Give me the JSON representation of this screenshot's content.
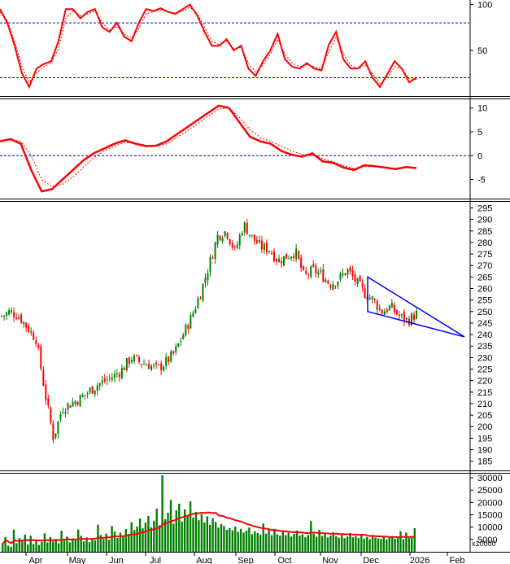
{
  "colors": {
    "background": "#ffffff",
    "up_candle": "#008000",
    "down_candle": "#ff0000",
    "indicator_line": "#ff0000",
    "indicator_signal": "#ff0000",
    "reference_line": "#0000cc",
    "triangle": "#0000ff",
    "volume_bar": "#008000",
    "volume_ma": "#ff0000",
    "grid_ticks": "#000000"
  },
  "chart_data": [
    {
      "type": "line",
      "panel": "stochastic-oscillator",
      "ylim": [
        0,
        105
      ],
      "y_ticks": [
        50,
        100
      ],
      "reference_levels": [
        20,
        80
      ],
      "series": [
        {
          "role": "main",
          "values": [
            95,
            80,
            55,
            25,
            10,
            30,
            35,
            38,
            60,
            95,
            95,
            85,
            92,
            95,
            75,
            70,
            80,
            65,
            60,
            80,
            95,
            93,
            96,
            92,
            90,
            95,
            100,
            88,
            70,
            55,
            55,
            62,
            50,
            55,
            30,
            22,
            38,
            50,
            68,
            40,
            32,
            30,
            36,
            30,
            28,
            56,
            70,
            40,
            30,
            30,
            38,
            20,
            10,
            24,
            38,
            30,
            15,
            20
          ]
        },
        {
          "role": "signal",
          "values": [
            92,
            82,
            60,
            32,
            15,
            25,
            32,
            36,
            52,
            85,
            93,
            88,
            90,
            93,
            80,
            72,
            76,
            68,
            63,
            74,
            90,
            92,
            94,
            92,
            90,
            93,
            97,
            90,
            75,
            60,
            56,
            60,
            52,
            53,
            36,
            26,
            34,
            46,
            62,
            46,
            36,
            32,
            34,
            32,
            30,
            48,
            64,
            46,
            34,
            30,
            34,
            24,
            14,
            20,
            32,
            30,
            19,
            18
          ]
        }
      ]
    },
    {
      "type": "line",
      "panel": "macd",
      "ylim": [
        -9,
        12
      ],
      "y_ticks": [
        -5,
        0,
        5,
        10
      ],
      "reference_levels": [
        0
      ],
      "series": [
        {
          "role": "main",
          "values": [
            3,
            3.5,
            2.5,
            -3,
            -7.5,
            -7,
            -5,
            -3,
            -1,
            0.5,
            1.5,
            2.5,
            3.2,
            2.5,
            2,
            2.1,
            3,
            4.5,
            6,
            7.5,
            9,
            10.5,
            10,
            7,
            4,
            3,
            2.5,
            1,
            0.2,
            -0.2,
            0.5,
            -1.2,
            -1.5,
            -2.5,
            -3,
            -2,
            -2.2,
            -2.5,
            -2.8,
            -2.4,
            -2.6
          ]
        },
        {
          "role": "signal",
          "values": [
            3,
            3.3,
            3,
            0,
            -5,
            -6.5,
            -6,
            -4.5,
            -2.5,
            -0.5,
            1,
            2,
            2.8,
            2.7,
            2.2,
            2,
            2.5,
            3.8,
            5.2,
            6.7,
            8.3,
            9.8,
            10,
            8,
            5.5,
            3.8,
            3,
            2,
            1,
            0.3,
            0.1,
            -0.6,
            -1.3,
            -2.1,
            -2.7,
            -2.3,
            -2.3,
            -2.5,
            -2.7,
            -2.5,
            -2.5
          ]
        }
      ]
    },
    {
      "type": "candlestick",
      "panel": "price",
      "ylim": [
        181,
        298
      ],
      "y_ticks": [
        185,
        190,
        195,
        200,
        205,
        210,
        215,
        220,
        225,
        230,
        235,
        240,
        245,
        250,
        255,
        260,
        265,
        270,
        275,
        280,
        285,
        290,
        295
      ],
      "x_month_labels": [
        "Apr",
        "May",
        "Jun",
        "Jul",
        "Aug",
        "Sep",
        "Oct",
        "Nov",
        "Dec",
        "2026",
        "Feb"
      ],
      "close_path": [
        248,
        250,
        248,
        243,
        238,
        215,
        195,
        208,
        210,
        212,
        215,
        218,
        220,
        222,
        225,
        230,
        228,
        227,
        225,
        228,
        232,
        240,
        248,
        258,
        270,
        283,
        285,
        276,
        288,
        282,
        278,
        277,
        272,
        274,
        276,
        265,
        268,
        266,
        262,
        264,
        268,
        263,
        258,
        255,
        250,
        252,
        248,
        246,
        249
      ],
      "pattern": {
        "type": "triangle",
        "vertices": [
          [
            "Dec",
            265
          ],
          [
            "Dec",
            250
          ],
          [
            "Feb",
            239
          ]
        ]
      }
    },
    {
      "type": "bar",
      "panel": "volume",
      "unit_label": "x10000",
      "ylim": [
        0,
        32000
      ],
      "y_ticks": [
        5000,
        10000,
        15000,
        20000,
        25000,
        30000
      ],
      "values": [
        3500,
        6000,
        2500,
        2000,
        9000,
        3500,
        5500,
        4500,
        7000,
        3000,
        6500,
        3200,
        5000,
        2800,
        4000,
        7500,
        3800,
        6000,
        4200,
        5200,
        3500,
        8500,
        4800,
        6200,
        3800,
        5400,
        4600,
        9000,
        6500,
        4200,
        5800,
        3900,
        5100,
        4700,
        11000,
        6800,
        5200,
        7400,
        4900,
        10500,
        8200,
        5600,
        7800,
        6100,
        9200,
        7300,
        12000,
        8800,
        10200,
        13500,
        9500,
        11800,
        14500,
        9900,
        12600,
        17500,
        10800,
        31000,
        13200,
        15800,
        21000,
        11400,
        16800,
        19500,
        12300,
        17200,
        14800,
        20500,
        13900,
        16200,
        12800,
        15200,
        11900,
        14400,
        10900,
        13600,
        12100,
        9800,
        11200,
        10400,
        8900,
        9600,
        8700,
        10200,
        8100,
        9300,
        7800,
        8600,
        9800,
        7200,
        8300,
        7600,
        6900,
        11500,
        7400,
        8800,
        6700,
        9300,
        7100,
        6500,
        8200,
        6800,
        7800,
        6200,
        7300,
        8600,
        6600,
        7100,
        5900,
        6800,
        12500,
        7400,
        6100,
        8900,
        6400,
        7200,
        5800,
        6600,
        7900,
        6300,
        5700,
        6900,
        5500,
        6200,
        7600,
        5900,
        6400,
        5600,
        7100,
        5300,
        6000,
        5100,
        6800,
        5800,
        5400,
        5200,
        6100,
        5000,
        5700,
        6400,
        5300,
        5900,
        8300,
        5100,
        7800,
        5600,
        6200,
        9600
      ]
    }
  ]
}
